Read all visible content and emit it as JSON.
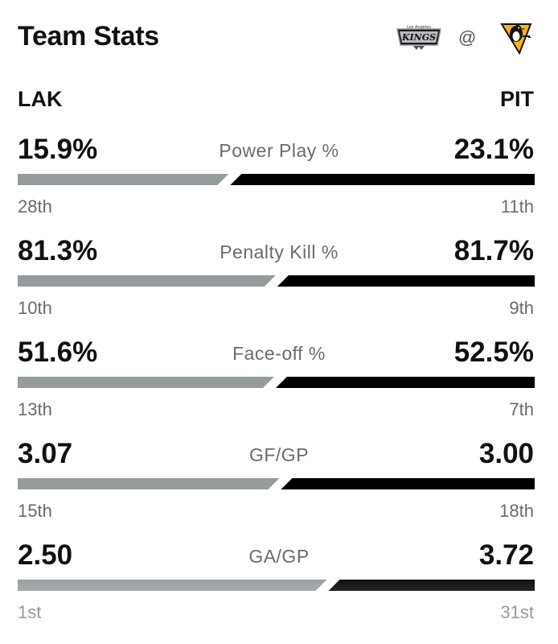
{
  "header": {
    "title": "Team Stats",
    "at": "@"
  },
  "away": {
    "abbr": "LAK",
    "logo": "kings-logo",
    "logo_text": "KINGS",
    "logo_subtext": "Los Angeles",
    "bar_color": "#969b9d"
  },
  "home": {
    "abbr": "PIT",
    "logo": "penguins-logo",
    "bar_color": "#000000"
  },
  "stats": [
    {
      "label": "Power Play %",
      "away_value": "15.9%",
      "home_value": "23.1%",
      "away_rank": "28th",
      "home_rank": "11th",
      "away_share": 0.408
    },
    {
      "label": "Penalty Kill %",
      "away_value": "81.3%",
      "home_value": "81.7%",
      "away_rank": "10th",
      "home_rank": "9th",
      "away_share": 0.499
    },
    {
      "label": "Face-off %",
      "away_value": "51.6%",
      "home_value": "52.5%",
      "away_rank": "13th",
      "home_rank": "7th",
      "away_share": 0.496
    },
    {
      "label": "GF/GP",
      "away_value": "3.07",
      "home_value": "3.00",
      "away_rank": "15th",
      "home_rank": "18th",
      "away_share": 0.506
    },
    {
      "label": "GA/GP",
      "away_value": "2.50",
      "home_value": "3.72",
      "away_rank": "1st",
      "home_rank": "31st",
      "away_share": 0.598
    }
  ]
}
